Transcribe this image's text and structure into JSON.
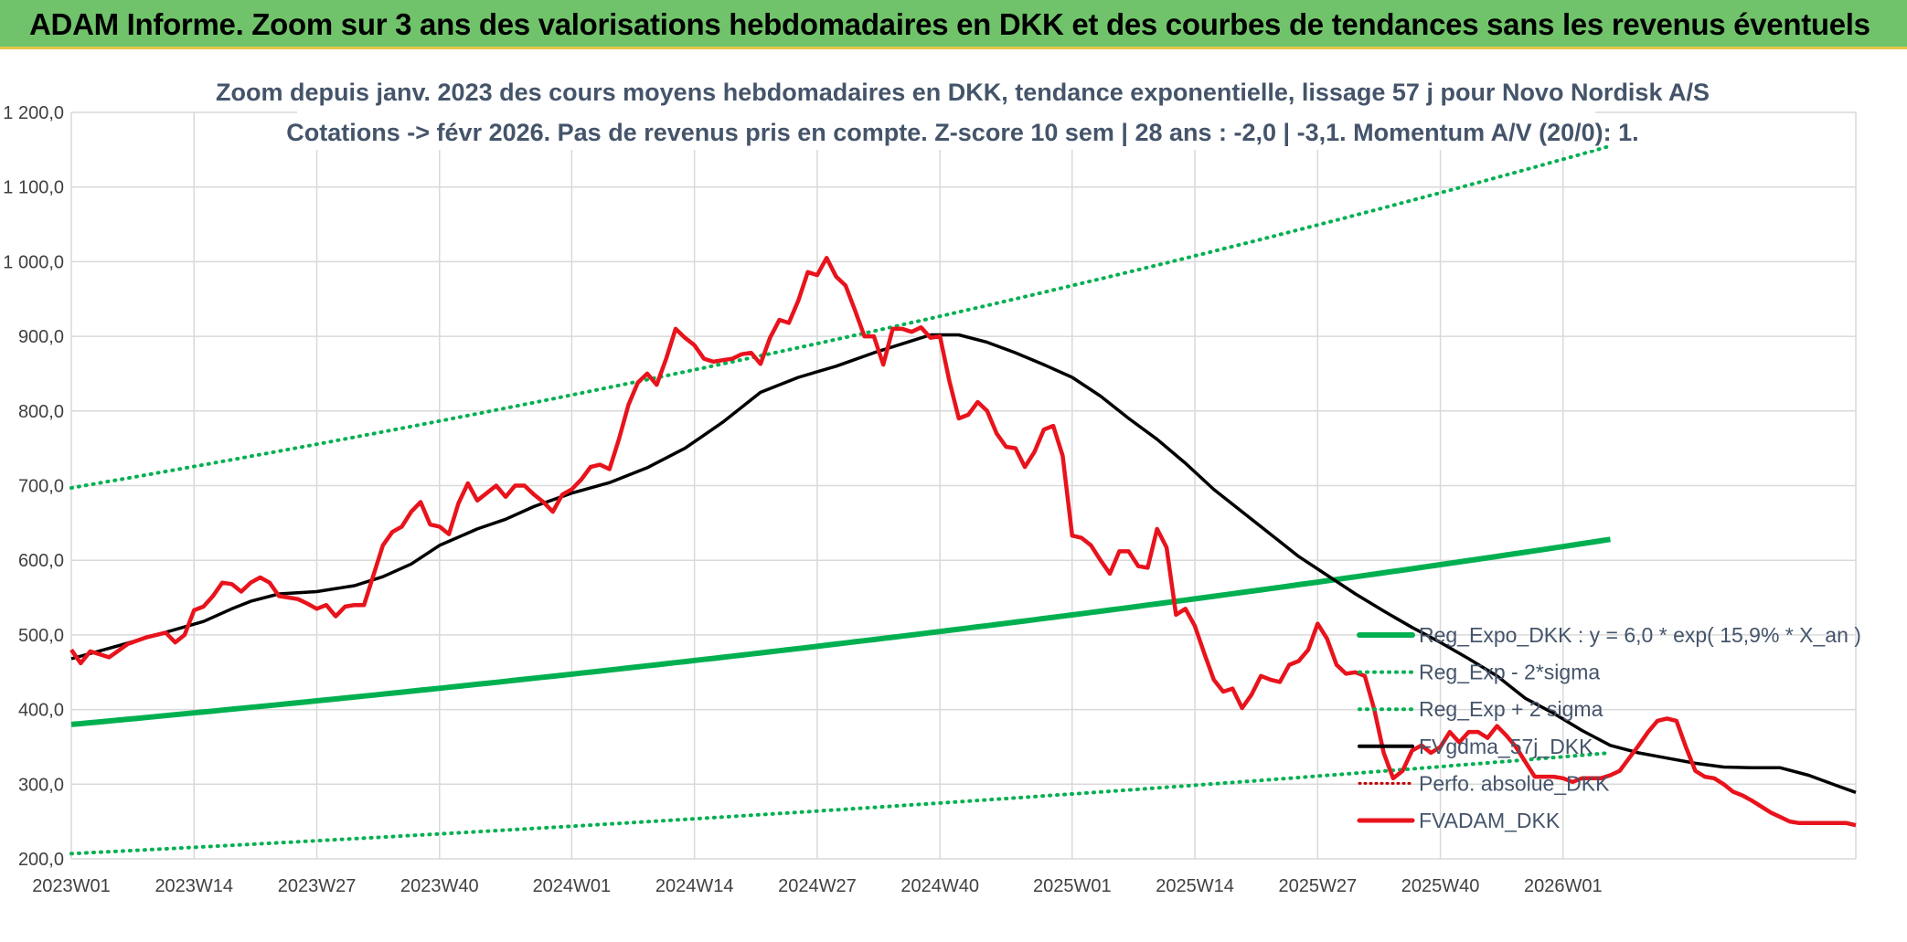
{
  "header": {
    "title": "ADAM Informe. Zoom sur 3 ans des valorisations hebdomadaires en DKK et des courbes de tendances sans les revenus éventuels"
  },
  "chart_data": {
    "type": "line",
    "title": "Zoom depuis janv. 2023 des cours moyens hebdomadaires en DKK, tendance exponentielle, lissage 57 j pour Novo Nordisk A/S",
    "subtitle": "Cotations -> févr 2026. Pas de revenus pris en compte. Z-score 10 sem | 28 ans : -2,0 | -3,1. Momentum A/V (20/0): 1.",
    "xlabel": "",
    "ylabel": "",
    "ylim": [
      200,
      1200
    ],
    "y_ticks": [
      "200,0",
      "300,0",
      "400,0",
      "500,0",
      "600,0",
      "700,0",
      "800,0",
      "900,0",
      "1 000,0",
      "1 100,0",
      "1 200,0"
    ],
    "x_ticks": [
      "2023W01",
      "2023W14",
      "2023W27",
      "2023W40",
      "2024W01",
      "2024W14",
      "2024W27",
      "2024W40",
      "2025W01",
      "2025W14",
      "2025W27",
      "2025W40",
      "2026W01"
    ],
    "grid": true,
    "legend_position": "bottom-right",
    "legend": [
      "Reg_Expo_DKK : y = 6,0 * exp( 15,9% *  X_an )",
      "Reg_Exp - 2*sigma",
      "Reg_Exp + 2 sigma",
      "FVgdma_57j_DKK",
      "Perfo. absolue_DKK",
      "FVADAM_DKK"
    ],
    "colors": {
      "reg_expo": "#00b050",
      "sigma": "#00b050",
      "gdma": "#000000",
      "perfo": "#c00000",
      "adam": "#e8131c"
    },
    "series": [
      {
        "name": "Reg_Expo_DKK : y = 6,0 * exp( 15,9% *  X_an )",
        "x_start": 1,
        "x_end": 164,
        "y_start": 380,
        "y_end": 628
      },
      {
        "name": "Reg_Exp - 2*sigma",
        "x_start": 1,
        "x_end": 164,
        "y_start": 207,
        "y_end": 342
      },
      {
        "name": "Reg_Exp + 2 sigma",
        "x_start": 1,
        "x_end": 164,
        "y_start": 697,
        "y_end": 1155
      },
      {
        "name": "FVgdma_57j_DKK",
        "points": [
          [
            1,
            468
          ],
          [
            5,
            482
          ],
          [
            10,
            500
          ],
          [
            15,
            518
          ],
          [
            18,
            535
          ],
          [
            20,
            545
          ],
          [
            23,
            555
          ],
          [
            27,
            558
          ],
          [
            31,
            566
          ],
          [
            34,
            578
          ],
          [
            37,
            595
          ],
          [
            40,
            620
          ],
          [
            44,
            642
          ],
          [
            47,
            655
          ],
          [
            50,
            672
          ],
          [
            54,
            690
          ],
          [
            58,
            704
          ],
          [
            62,
            724
          ],
          [
            66,
            750
          ],
          [
            70,
            785
          ],
          [
            74,
            825
          ],
          [
            78,
            845
          ],
          [
            82,
            860
          ],
          [
            86,
            878
          ],
          [
            89,
            890
          ],
          [
            92,
            902
          ],
          [
            95,
            902
          ],
          [
            98,
            892
          ],
          [
            101,
            878
          ],
          [
            104,
            862
          ],
          [
            107,
            845
          ],
          [
            110,
            820
          ],
          [
            113,
            790
          ],
          [
            116,
            762
          ],
          [
            119,
            730
          ],
          [
            122,
            695
          ],
          [
            125,
            665
          ],
          [
            128,
            635
          ],
          [
            131,
            605
          ],
          [
            134,
            580
          ],
          [
            137,
            555
          ],
          [
            140,
            532
          ],
          [
            143,
            510
          ],
          [
            146,
            490
          ],
          [
            149,
            468
          ],
          [
            152,
            445
          ],
          [
            155,
            415
          ],
          [
            158,
            395
          ],
          [
            161,
            372
          ],
          [
            164,
            352
          ],
          [
            167,
            342
          ],
          [
            170,
            335
          ],
          [
            173,
            328
          ],
          [
            176,
            323
          ],
          [
            179,
            322
          ],
          [
            182,
            322
          ],
          [
            185,
            312
          ],
          [
            188,
            298
          ],
          [
            190,
            289
          ]
        ]
      },
      {
        "name": "FVADAM_DKK",
        "points": [
          [
            1,
            480
          ],
          [
            2,
            462
          ],
          [
            3,
            478
          ],
          [
            5,
            470
          ],
          [
            7,
            488
          ],
          [
            9,
            497
          ],
          [
            11,
            503
          ],
          [
            12,
            490
          ],
          [
            13,
            500
          ],
          [
            14,
            533
          ],
          [
            15,
            538
          ],
          [
            16,
            552
          ],
          [
            17,
            570
          ],
          [
            18,
            568
          ],
          [
            19,
            558
          ],
          [
            20,
            570
          ],
          [
            21,
            577
          ],
          [
            22,
            570
          ],
          [
            23,
            552
          ],
          [
            24,
            550
          ],
          [
            25,
            548
          ],
          [
            26,
            542
          ],
          [
            27,
            535
          ],
          [
            28,
            540
          ],
          [
            29,
            525
          ],
          [
            30,
            538
          ],
          [
            31,
            540
          ],
          [
            32,
            540
          ],
          [
            33,
            580
          ],
          [
            34,
            620
          ],
          [
            35,
            638
          ],
          [
            36,
            645
          ],
          [
            37,
            665
          ],
          [
            38,
            678
          ],
          [
            39,
            648
          ],
          [
            40,
            645
          ],
          [
            41,
            635
          ],
          [
            42,
            676
          ],
          [
            43,
            703
          ],
          [
            44,
            680
          ],
          [
            45,
            690
          ],
          [
            46,
            700
          ],
          [
            47,
            685
          ],
          [
            48,
            700
          ],
          [
            49,
            700
          ],
          [
            50,
            688
          ],
          [
            51,
            678
          ],
          [
            52,
            665
          ],
          [
            53,
            688
          ],
          [
            54,
            695
          ],
          [
            55,
            708
          ],
          [
            56,
            725
          ],
          [
            57,
            728
          ],
          [
            58,
            722
          ],
          [
            59,
            762
          ],
          [
            60,
            808
          ],
          [
            61,
            838
          ],
          [
            62,
            850
          ],
          [
            63,
            835
          ],
          [
            64,
            870
          ],
          [
            65,
            910
          ],
          [
            66,
            898
          ],
          [
            67,
            888
          ],
          [
            68,
            870
          ],
          [
            69,
            866
          ],
          [
            70,
            868
          ],
          [
            71,
            870
          ],
          [
            72,
            876
          ],
          [
            73,
            878
          ],
          [
            74,
            863
          ],
          [
            75,
            898
          ],
          [
            76,
            922
          ],
          [
            77,
            918
          ],
          [
            78,
            948
          ],
          [
            79,
            986
          ],
          [
            80,
            982
          ],
          [
            81,
            1005
          ],
          [
            82,
            980
          ],
          [
            83,
            968
          ],
          [
            84,
            935
          ],
          [
            85,
            900
          ],
          [
            86,
            900
          ],
          [
            87,
            862
          ],
          [
            88,
            910
          ],
          [
            89,
            910
          ],
          [
            90,
            906
          ],
          [
            91,
            912
          ],
          [
            92,
            898
          ],
          [
            93,
            900
          ],
          [
            94,
            840
          ],
          [
            95,
            790
          ],
          [
            96,
            795
          ],
          [
            97,
            812
          ],
          [
            98,
            800
          ],
          [
            99,
            770
          ],
          [
            100,
            752
          ],
          [
            101,
            750
          ],
          [
            102,
            725
          ],
          [
            103,
            745
          ],
          [
            104,
            775
          ],
          [
            105,
            780
          ],
          [
            106,
            740
          ],
          [
            107,
            633
          ],
          [
            108,
            630
          ],
          [
            109,
            620
          ],
          [
            110,
            600
          ],
          [
            111,
            582
          ],
          [
            112,
            612
          ],
          [
            113,
            612
          ],
          [
            114,
            592
          ],
          [
            115,
            590
          ],
          [
            116,
            642
          ],
          [
            117,
            617
          ],
          [
            118,
            527
          ],
          [
            119,
            535
          ],
          [
            120,
            512
          ],
          [
            121,
            475
          ],
          [
            122,
            440
          ],
          [
            123,
            424
          ],
          [
            124,
            428
          ],
          [
            125,
            402
          ],
          [
            126,
            420
          ],
          [
            127,
            445
          ],
          [
            128,
            440
          ],
          [
            129,
            437
          ],
          [
            130,
            460
          ],
          [
            131,
            465
          ],
          [
            132,
            480
          ],
          [
            133,
            515
          ],
          [
            134,
            495
          ],
          [
            135,
            460
          ],
          [
            136,
            448
          ],
          [
            137,
            450
          ],
          [
            138,
            445
          ],
          [
            139,
            400
          ],
          [
            140,
            342
          ],
          [
            141,
            308
          ],
          [
            142,
            318
          ],
          [
            143,
            345
          ],
          [
            144,
            352
          ],
          [
            145,
            342
          ],
          [
            146,
            350
          ],
          [
            147,
            370
          ],
          [
            148,
            356
          ],
          [
            149,
            370
          ],
          [
            150,
            370
          ],
          [
            151,
            362
          ],
          [
            152,
            378
          ],
          [
            153,
            365
          ],
          [
            154,
            350
          ],
          [
            155,
            330
          ],
          [
            156,
            310
          ],
          [
            157,
            310
          ],
          [
            158,
            310
          ],
          [
            159,
            308
          ],
          [
            160,
            303
          ],
          [
            161,
            308
          ],
          [
            162,
            308
          ],
          [
            163,
            308
          ],
          [
            164,
            312
          ],
          [
            165,
            318
          ],
          [
            166,
            335
          ],
          [
            167,
            352
          ],
          [
            168,
            370
          ],
          [
            169,
            385
          ],
          [
            170,
            388
          ],
          [
            171,
            385
          ],
          [
            172,
            350
          ],
          [
            173,
            318
          ],
          [
            174,
            310
          ],
          [
            175,
            308
          ],
          [
            176,
            300
          ],
          [
            177,
            290
          ],
          [
            178,
            285
          ],
          [
            179,
            278
          ],
          [
            180,
            270
          ],
          [
            181,
            262
          ],
          [
            182,
            256
          ],
          [
            183,
            250
          ],
          [
            184,
            248
          ],
          [
            185,
            248
          ],
          [
            186,
            248
          ],
          [
            187,
            248
          ],
          [
            188,
            248
          ],
          [
            189,
            248
          ],
          [
            190,
            245
          ]
        ]
      }
    ]
  }
}
